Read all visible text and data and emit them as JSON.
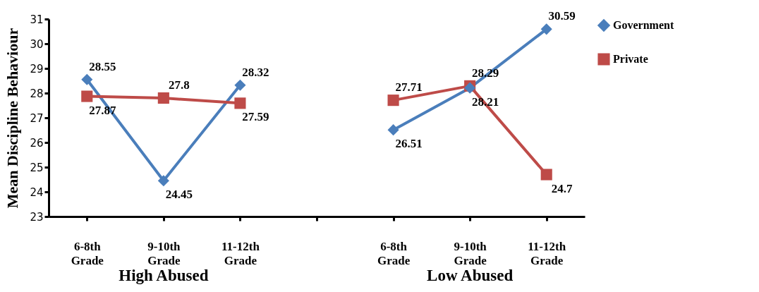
{
  "chart_data": {
    "type": "line",
    "ylabel": "Mean Discipline Behaviour",
    "categories": [
      "6-8th Grade",
      "9-10th Grade",
      "11-12th Grade",
      null,
      "6-8th Grade",
      "9-10th Grade",
      "11-12th Grade"
    ],
    "series": [
      {
        "name": "Government",
        "color": "#4a7ebb",
        "marker": "diamond",
        "values": [
          28.55,
          24.45,
          28.32,
          null,
          26.51,
          28.21,
          30.59
        ]
      },
      {
        "name": "Private",
        "color": "#be4b48",
        "marker": "square",
        "values": [
          27.87,
          27.8,
          27.59,
          null,
          27.71,
          28.29,
          24.7
        ]
      }
    ],
    "ylim": [
      23,
      31
    ],
    "yticks": [
      23,
      24,
      25,
      26,
      27,
      28,
      29,
      30,
      31
    ],
    "grid": false,
    "legend": "right",
    "data_labels": true,
    "annotations": [
      "High Abused",
      "Low Abused"
    ]
  }
}
